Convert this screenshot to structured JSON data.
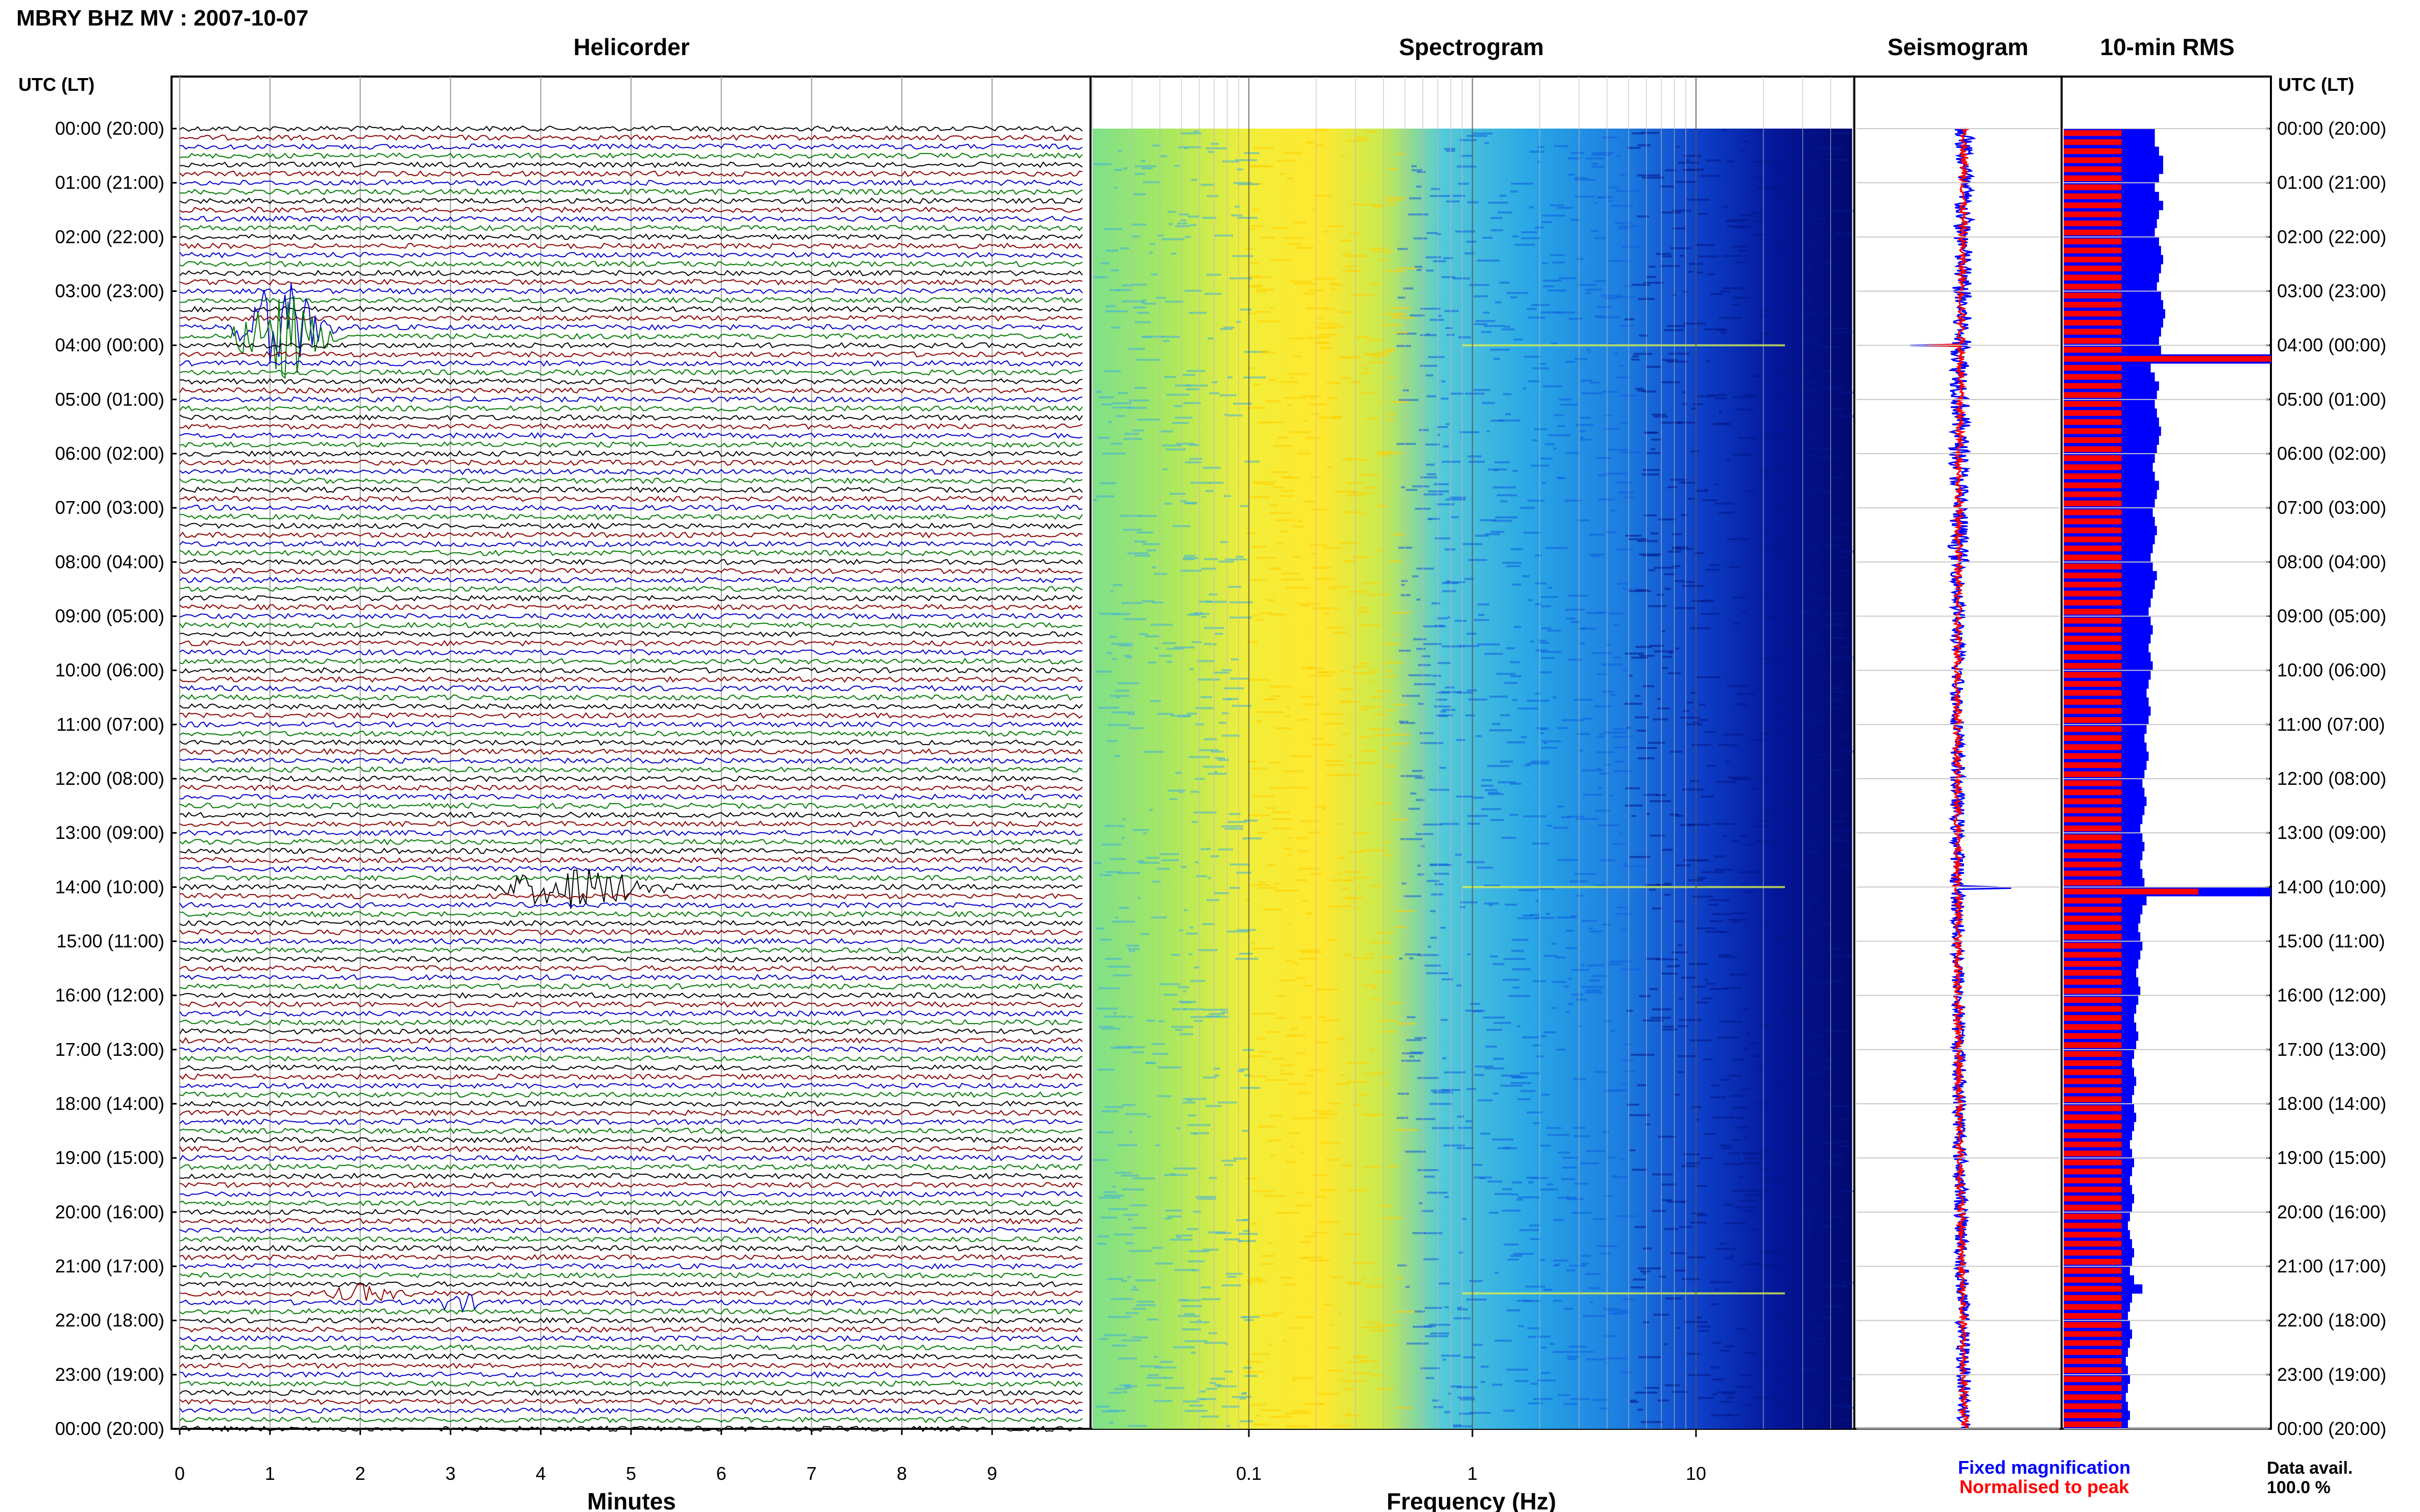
{
  "header": {
    "station_title": "MBRY BHZ MV : 2007-10-07",
    "time_axis_title": "UTC (LT)",
    "panel_helicorder": "Helicorder",
    "panel_spectrogram": "Spectrogram",
    "panel_seismogram": "Seismogram",
    "panel_rms": "10-min RMS"
  },
  "time_labels": [
    "00:00 (20:00)",
    "01:00 (21:00)",
    "02:00 (22:00)",
    "03:00 (23:00)",
    "04:00 (00:00)",
    "05:00 (01:00)",
    "06:00 (02:00)",
    "07:00 (03:00)",
    "08:00 (04:00)",
    "09:00 (05:00)",
    "10:00 (06:00)",
    "11:00 (07:00)",
    "12:00 (08:00)",
    "13:00 (09:00)",
    "14:00 (10:00)",
    "15:00 (11:00)",
    "16:00 (12:00)",
    "17:00 (13:00)",
    "18:00 (14:00)",
    "19:00 (15:00)",
    "20:00 (16:00)",
    "21:00 (17:00)",
    "22:00 (18:00)",
    "23:00 (19:00)",
    "00:00 (20:00)"
  ],
  "footer": {
    "minutes_label": "Minutes",
    "frequency_label": "Frequency (Hz)",
    "legend_fixed": "Fixed magnification",
    "legend_normalised": "Normalised to peak",
    "data_avail_label": "Data avail.",
    "data_avail_value": "100.0 %"
  },
  "colors": {
    "helicorder_traces": [
      "#000000",
      "#8b0000",
      "#0000cd",
      "#007a00"
    ],
    "fixed_magnification": "#0000ff",
    "normalised": "#ff0000"
  },
  "chart_data": [
    {
      "type": "line",
      "name": "helicorder",
      "title": "Helicorder",
      "xlabel": "Minutes",
      "x_ticks": [
        0,
        1,
        2,
        3,
        4,
        5,
        6,
        7,
        8,
        9
      ],
      "xlim": [
        0,
        10
      ],
      "ylim_hours": [
        0,
        24
      ],
      "trace_interval_min": 10,
      "events": [
        {
          "hour": 3.75,
          "minute": 0.7,
          "duration_min": 1.2,
          "amplitude": "large"
        },
        {
          "hour": 14.0,
          "minute": 3.6,
          "duration_min": 2.2,
          "amplitude": "medium"
        },
        {
          "hour": 21.5,
          "minute": 1.7,
          "duration_min": 1.0,
          "amplitude": "small"
        },
        {
          "hour": 21.67,
          "minute": 2.8,
          "duration_min": 0.8,
          "amplitude": "small"
        }
      ]
    },
    {
      "type": "heatmap",
      "name": "spectrogram",
      "title": "Spectrogram",
      "xlabel": "Frequency (Hz)",
      "x_scale": "log",
      "xlim": [
        0.02,
        50
      ],
      "x_tick_labels": [
        "0.1",
        "1",
        "10"
      ],
      "x_ticks": [
        0.1,
        1,
        10
      ],
      "peak_frequency_band_hz": [
        0.15,
        0.7
      ]
    },
    {
      "type": "line",
      "name": "seismogram",
      "title": "Seismogram",
      "series": [
        {
          "name": "Fixed magnification",
          "color": "#0000ff"
        },
        {
          "name": "Normalised to peak",
          "color": "#ff0000"
        }
      ],
      "spikes_hours": [
        4.0,
        14.0
      ]
    },
    {
      "type": "bar",
      "name": "rms",
      "title": "10-min RMS",
      "orientation": "horizontal",
      "xlim": [
        0,
        1
      ],
      "interval_min": 10,
      "fixed_magnification": [
        0.44,
        0.44,
        0.46,
        0.48,
        0.48,
        0.46,
        0.44,
        0.46,
        0.48,
        0.46,
        0.45,
        0.44,
        0.46,
        0.47,
        0.48,
        0.47,
        0.46,
        0.45,
        0.47,
        0.48,
        0.49,
        0.48,
        0.47,
        0.46,
        0.47,
        1.0,
        0.42,
        0.44,
        0.46,
        0.45,
        0.44,
        0.45,
        0.46,
        0.47,
        0.46,
        0.45,
        0.44,
        0.43,
        0.44,
        0.46,
        0.45,
        0.44,
        0.43,
        0.44,
        0.45,
        0.44,
        0.43,
        0.42,
        0.43,
        0.45,
        0.44,
        0.43,
        0.42,
        0.41,
        0.42,
        0.43,
        0.42,
        0.41,
        0.42,
        0.43,
        0.42,
        0.41,
        0.4,
        0.41,
        0.42,
        0.41,
        0.4,
        0.39,
        0.4,
        0.41,
        0.4,
        0.39,
        0.38,
        0.39,
        0.4,
        0.39,
        0.38,
        0.37,
        0.38,
        0.39,
        0.38,
        0.37,
        0.38,
        0.39,
        1.0,
        0.4,
        0.38,
        0.37,
        0.36,
        0.37,
        0.38,
        0.37,
        0.36,
        0.35,
        0.36,
        0.37,
        0.36,
        0.35,
        0.34,
        0.35,
        0.36,
        0.35,
        0.34,
        0.33,
        0.34,
        0.35,
        0.34,
        0.33,
        0.34,
        0.35,
        0.34,
        0.33,
        0.32,
        0.33,
        0.34,
        0.33,
        0.32,
        0.33,
        0.34,
        0.33,
        0.32,
        0.31,
        0.32,
        0.33,
        0.34,
        0.33,
        0.32,
        0.34,
        0.38,
        0.33,
        0.32,
        0.31,
        0.32,
        0.33,
        0.32,
        0.31,
        0.3,
        0.31,
        0.32,
        0.31,
        0.3,
        0.31,
        0.32,
        0.31
      ],
      "normalised_to_peak": [
        0.28,
        0.28,
        0.28,
        0.28,
        0.28,
        0.28,
        0.28,
        0.28,
        0.28,
        0.28,
        0.28,
        0.28,
        0.28,
        0.28,
        0.28,
        0.28,
        0.28,
        0.28,
        0.28,
        0.28,
        0.28,
        0.28,
        0.28,
        0.28,
        0.28,
        1.0,
        0.28,
        0.28,
        0.28,
        0.28,
        0.28,
        0.28,
        0.28,
        0.28,
        0.28,
        0.28,
        0.28,
        0.28,
        0.28,
        0.28,
        0.28,
        0.28,
        0.28,
        0.28,
        0.28,
        0.28,
        0.28,
        0.28,
        0.28,
        0.28,
        0.28,
        0.28,
        0.28,
        0.28,
        0.28,
        0.28,
        0.28,
        0.28,
        0.28,
        0.28,
        0.28,
        0.28,
        0.28,
        0.28,
        0.28,
        0.28,
        0.28,
        0.28,
        0.28,
        0.28,
        0.28,
        0.28,
        0.28,
        0.28,
        0.28,
        0.28,
        0.28,
        0.28,
        0.28,
        0.28,
        0.28,
        0.28,
        0.28,
        0.28,
        0.65,
        0.28,
        0.28,
        0.28,
        0.28,
        0.28,
        0.28,
        0.28,
        0.28,
        0.28,
        0.28,
        0.28,
        0.28,
        0.28,
        0.28,
        0.28,
        0.28,
        0.28,
        0.28,
        0.28,
        0.28,
        0.28,
        0.28,
        0.28,
        0.28,
        0.28,
        0.28,
        0.28,
        0.28,
        0.28,
        0.28,
        0.28,
        0.28,
        0.28,
        0.28,
        0.28,
        0.28,
        0.28,
        0.28,
        0.28,
        0.28,
        0.28,
        0.28,
        0.28,
        0.28,
        0.28,
        0.28,
        0.28,
        0.28,
        0.28,
        0.28,
        0.28,
        0.28,
        0.28,
        0.28,
        0.28,
        0.28,
        0.28,
        0.28,
        0.28
      ]
    }
  ]
}
